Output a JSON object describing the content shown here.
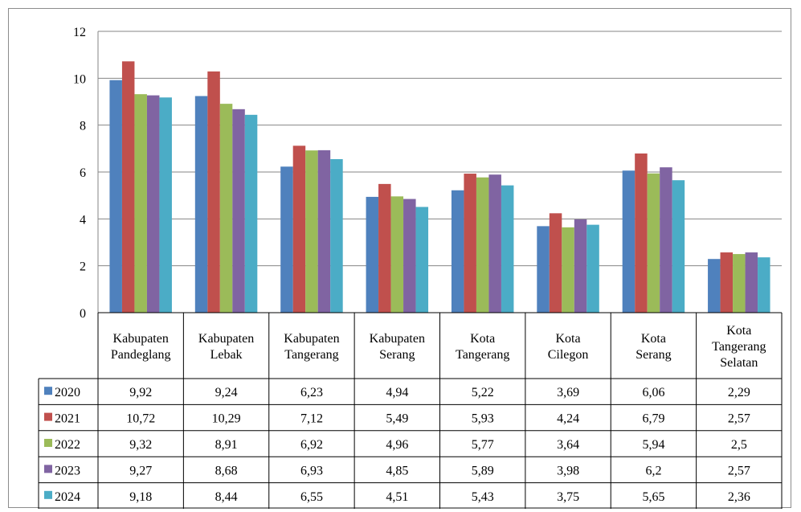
{
  "chart_data": {
    "type": "bar",
    "categories": [
      [
        "Kabupaten",
        "Pandeglang"
      ],
      [
        "Kabupaten",
        "Lebak"
      ],
      [
        "Kabupaten",
        "Tangerang"
      ],
      [
        "Kabupaten",
        "Serang"
      ],
      [
        "Kota",
        "Tangerang"
      ],
      [
        "Kota",
        "Cilegon"
      ],
      [
        "Kota",
        "Serang"
      ],
      [
        "Kota",
        "Tangerang",
        "Selatan"
      ]
    ],
    "ylim": [
      0,
      12
    ],
    "yticks": [
      0,
      2,
      4,
      6,
      8,
      10,
      12
    ],
    "grid": true,
    "legend": "data-table",
    "series": [
      {
        "name": "2020",
        "color": "#4F81BD",
        "values": [
          9.92,
          9.24,
          6.23,
          4.94,
          5.22,
          3.69,
          6.06,
          2.29
        ],
        "labels": [
          "9,92",
          "9,24",
          "6,23",
          "4,94",
          "5,22",
          "3,69",
          "6,06",
          "2,29"
        ]
      },
      {
        "name": "2021",
        "color": "#C0504D",
        "values": [
          10.72,
          10.29,
          7.12,
          5.49,
          5.93,
          4.24,
          6.79,
          2.57
        ],
        "labels": [
          "10,72",
          "10,29",
          "7,12",
          "5,49",
          "5,93",
          "4,24",
          "6,79",
          "2,57"
        ]
      },
      {
        "name": "2022",
        "color": "#9BBB59",
        "values": [
          9.32,
          8.91,
          6.92,
          4.96,
          5.77,
          3.64,
          5.94,
          2.5
        ],
        "labels": [
          "9,32",
          "8,91",
          "6,92",
          "4,96",
          "5,77",
          "3,64",
          "5,94",
          "2,5"
        ]
      },
      {
        "name": "2023",
        "color": "#8064A2",
        "values": [
          9.27,
          8.68,
          6.93,
          4.85,
          5.89,
          3.98,
          6.2,
          2.57
        ],
        "labels": [
          "9,27",
          "8,68",
          "6,93",
          "4,85",
          "5,89",
          "3,98",
          "6,2",
          "2,57"
        ]
      },
      {
        "name": "2024",
        "color": "#4BACC6",
        "values": [
          9.18,
          8.44,
          6.55,
          4.51,
          5.43,
          3.75,
          5.65,
          2.36
        ],
        "labels": [
          "9,18",
          "8,44",
          "6,55",
          "4,51",
          "5,43",
          "3,75",
          "5,65",
          "2,36"
        ]
      }
    ]
  }
}
